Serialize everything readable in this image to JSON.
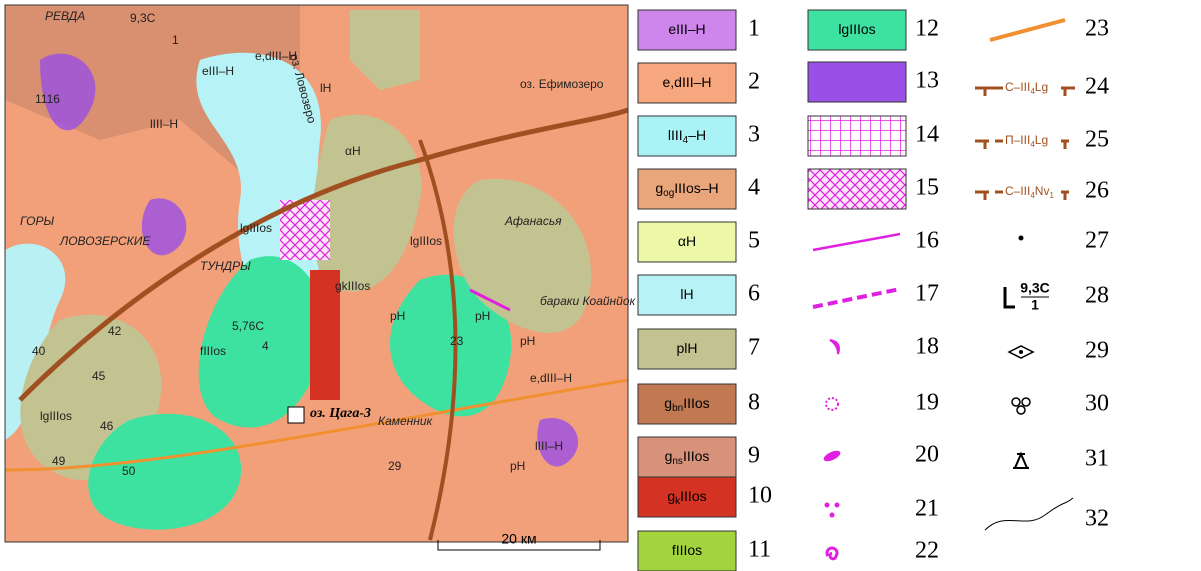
{
  "map": {
    "labels": [
      "РЕВДА",
      "9,3C",
      "1",
      "оз. Ефимозеро",
      "ГОРЫ",
      "ЛОВОЗЕРСКИЕ",
      "ТУНДРЫ",
      "оз. Ловозеро",
      "Афанасья",
      "бараки Коайнйок",
      "Каменник",
      "5,76C",
      "4",
      "23",
      "29",
      "40",
      "42",
      "45",
      "46",
      "49",
      "50",
      "1116",
      "e,dIII–H",
      "eIII–H",
      "lH",
      "αH",
      "lgIIIos",
      "gkIIIos",
      "fIIIos",
      "pH",
      "lIII–H",
      "lgIIIos",
      "pH",
      "pH",
      "e,dIII–H",
      "lIII–H",
      "pH",
      "lgIIIos"
    ],
    "lake_label": "оз. Цага-3",
    "scale": "20 км"
  },
  "legend": {
    "items": [
      {
        "number": "1",
        "color": "#cf86ec",
        "label": [
          {
            "text": "eIII–H"
          }
        ]
      },
      {
        "number": "2",
        "color": "#f6a77e",
        "label": [
          {
            "text": "e,dIII–H"
          }
        ]
      },
      {
        "number": "3",
        "color": "#a9f3f6",
        "label": [
          {
            "text": "lIII"
          },
          {
            "text": "4",
            "sub": true
          },
          {
            "text": "–H"
          }
        ]
      },
      {
        "number": "4",
        "color": "#e9a67a",
        "label": [
          {
            "text": "g"
          },
          {
            "text": "og",
            "sub": true
          },
          {
            "text": "IIIos–H"
          }
        ]
      },
      {
        "number": "5",
        "color": "#ecf8a6",
        "label": [
          {
            "text": "αH"
          }
        ]
      },
      {
        "number": "6",
        "color": "#b6f2f6",
        "label": [
          {
            "text": "lH"
          }
        ]
      },
      {
        "number": "7",
        "color": "#c3c392",
        "label": [
          {
            "text": "plH"
          }
        ]
      },
      {
        "number": "8",
        "color": "#c27850",
        "label": [
          {
            "text": "g"
          },
          {
            "text": "bn",
            "sub": true
          },
          {
            "text": "IIIos"
          }
        ]
      },
      {
        "number": "9",
        "color": "#d6927a",
        "label": [
          {
            "text": "g"
          },
          {
            "text": "ns",
            "sub": true
          },
          {
            "text": "IIIos"
          }
        ]
      },
      {
        "number": "10",
        "color": "#d43222",
        "label": [
          {
            "text": "g"
          },
          {
            "text": "k",
            "sub": true
          },
          {
            "text": "IIIos"
          }
        ]
      },
      {
        "number": "11",
        "color": "#a2d43e",
        "label": [
          {
            "text": "fIIIos"
          }
        ]
      },
      {
        "number": "12",
        "color": "#3ee2a0",
        "label": [
          {
            "text": "lgIIIos"
          }
        ]
      },
      {
        "number": "13",
        "color": "#9a4fe6"
      },
      {
        "number": "14"
      },
      {
        "number": "15"
      },
      {
        "number": "16"
      },
      {
        "number": "17"
      },
      {
        "number": "18"
      },
      {
        "number": "19"
      },
      {
        "number": "20"
      },
      {
        "number": "21"
      },
      {
        "number": "22"
      },
      {
        "number": "23"
      },
      {
        "number": "24",
        "label": [
          {
            "text": "C–III"
          },
          {
            "text": "4",
            "sub": true
          },
          {
            "text": "Lg"
          }
        ]
      },
      {
        "number": "25",
        "label": [
          {
            "text": "П–III"
          },
          {
            "text": "4",
            "sub": true
          },
          {
            "text": "Lg"
          }
        ]
      },
      {
        "number": "26",
        "label": [
          {
            "text": "C–III"
          },
          {
            "text": "4",
            "sub": true
          },
          {
            "text": "Nv"
          },
          {
            "text": "1",
            "sub": true
          }
        ]
      },
      {
        "number": "27"
      },
      {
        "number": "28",
        "label": [
          {
            "text": "9,3C"
          },
          {
            "text": "1"
          }
        ]
      },
      {
        "number": "29"
      },
      {
        "number": "30"
      },
      {
        "number": "31"
      },
      {
        "number": "32"
      }
    ]
  }
}
